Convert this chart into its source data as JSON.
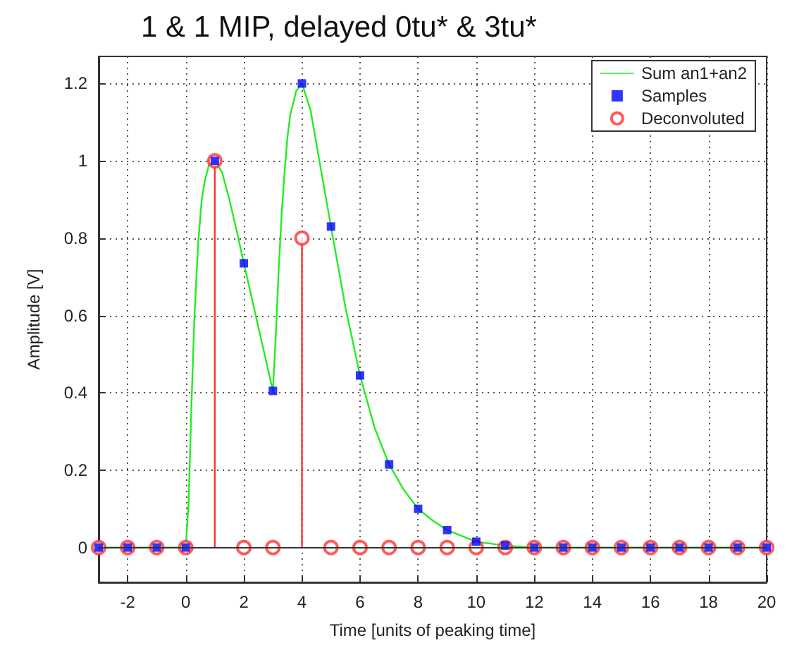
{
  "chart_data": {
    "type": "line",
    "title": "1 & 1 MIP, delayed 0tu* & 3tu*",
    "xlabel": "Time [units of peaking time]",
    "ylabel": "Amplitude [V]",
    "xlim": [
      -3,
      20
    ],
    "xticks": [
      -2,
      0,
      2,
      4,
      6,
      8,
      10,
      12,
      14,
      16,
      18,
      20
    ],
    "ylim": [
      -0.09,
      1.27
    ],
    "yticks": [
      0,
      0.2,
      0.4,
      0.6,
      0.8,
      1,
      1.2
    ],
    "grid": true,
    "legend": "top right",
    "series": [
      {
        "name": "Sum an1+an2",
        "color": "#22ee22",
        "marker": "none",
        "line_style": "solid",
        "x": [
          -3,
          0,
          0.1,
          0.2,
          0.3,
          0.43,
          0.55,
          0.66,
          0.8,
          1,
          1.25,
          1.5,
          1.75,
          2,
          2.5,
          3,
          3.1,
          3.2,
          3.3,
          3.4,
          3.5,
          3.6,
          3.8,
          4,
          4.3,
          4.6,
          5,
          5.5,
          6,
          6.5,
          7,
          7.5,
          8,
          8.5,
          9,
          10,
          11,
          12,
          20
        ],
        "values": [
          0,
          0,
          0.12,
          0.38,
          0.6,
          0.79,
          0.9,
          0.95,
          0.99,
          1,
          0.97,
          0.9,
          0.82,
          0.735,
          0.57,
          0.405,
          0.55,
          0.72,
          0.86,
          0.97,
          1.06,
          1.12,
          1.18,
          1.2,
          1.13,
          1.0,
          0.83,
          0.62,
          0.445,
          0.31,
          0.215,
          0.15,
          0.1,
          0.07,
          0.045,
          0.015,
          0.005,
          0,
          0
        ]
      },
      {
        "name": "Samples",
        "type": "scatter",
        "color": "#0000ff",
        "marker": "square",
        "x": [
          -3,
          -2,
          -1,
          0,
          1,
          2,
          3,
          4,
          5,
          6,
          7,
          8,
          9,
          10,
          11,
          12,
          13,
          14,
          15,
          16,
          17,
          18,
          19,
          20
        ],
        "values": [
          0,
          0,
          0,
          0,
          1,
          0.735,
          0.405,
          1.2,
          0.83,
          0.445,
          0.215,
          0.1,
          0.045,
          0.015,
          0.005,
          0,
          0,
          0,
          0,
          0,
          0,
          0,
          0,
          0
        ]
      },
      {
        "name": "Deconvoluted",
        "type": "lollipop",
        "color": "#ff3333",
        "marker": "circle",
        "x": [
          -3,
          -2,
          -1,
          0,
          1,
          2,
          3,
          4,
          5,
          6,
          7,
          8,
          9,
          10,
          11,
          12,
          13,
          14,
          15,
          16,
          17,
          18,
          19,
          20
        ],
        "values": [
          0,
          0,
          0,
          0,
          1,
          0,
          0,
          0.8,
          0,
          0,
          0,
          0,
          0,
          0,
          0,
          0,
          0,
          0,
          0,
          0,
          0,
          0,
          0,
          0
        ]
      }
    ]
  }
}
